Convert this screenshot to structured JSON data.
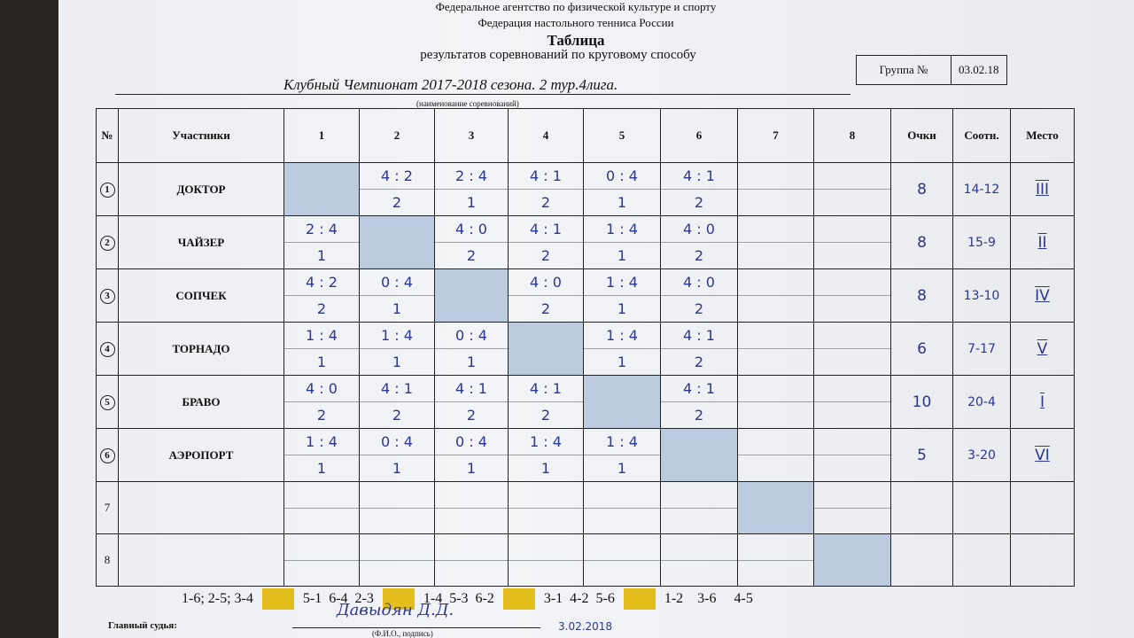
{
  "header": {
    "agency": "Федеральное агентство по физической культуре и спорту",
    "federation": "Федерация настольного тенниса России",
    "title": "Таблица",
    "subtitle": "результатов соревнований по круговому способу",
    "competition": "Клубный Чемпионат 2017-2018 сезона. 2 тур.4лига.",
    "competition_note": "(наименование соревнований)",
    "group_label": "Группа №",
    "group_value": "03.02.18"
  },
  "table": {
    "columns": [
      "№",
      "Участники",
      "1",
      "2",
      "3",
      "4",
      "5",
      "6",
      "7",
      "8",
      "Очки",
      "Соотн.",
      "Место"
    ],
    "rows": [
      {
        "num": "1",
        "name": "ДОКТОР",
        "results": [
          null,
          {
            "s": "4 : 2",
            "p": "2"
          },
          {
            "s": "2 : 4",
            "p": "1"
          },
          {
            "s": "4 : 1",
            "p": "2"
          },
          {
            "s": "0 : 4",
            "p": "1"
          },
          {
            "s": "4 : 1",
            "p": "2"
          },
          null,
          null
        ],
        "points": "8",
        "ratio": "14-12",
        "place": "III"
      },
      {
        "num": "2",
        "name": "ЧАЙЗЕР",
        "results": [
          {
            "s": "2 : 4",
            "p": "1"
          },
          null,
          {
            "s": "4 : 0",
            "p": "2"
          },
          {
            "s": "4 : 1",
            "p": "2"
          },
          {
            "s": "1 : 4",
            "p": "1"
          },
          {
            "s": "4 : 0",
            "p": "2"
          },
          null,
          null
        ],
        "points": "8",
        "ratio": "15-9",
        "place": "II"
      },
      {
        "num": "3",
        "name": "СОПЧЕК",
        "results": [
          {
            "s": "4 : 2",
            "p": "2"
          },
          {
            "s": "0 : 4",
            "p": "1"
          },
          null,
          {
            "s": "4 : 0",
            "p": "2"
          },
          {
            "s": "1 : 4",
            "p": "1"
          },
          {
            "s": "4 : 0",
            "p": "2"
          },
          null,
          null
        ],
        "points": "8",
        "ratio": "13-10",
        "place": "IV"
      },
      {
        "num": "4",
        "name": "ТОРНАДО",
        "results": [
          {
            "s": "1 : 4",
            "p": "1"
          },
          {
            "s": "1 : 4",
            "p": "1"
          },
          {
            "s": "0 : 4",
            "p": "1"
          },
          null,
          {
            "s": "1 : 4",
            "p": "1"
          },
          {
            "s": "4 : 1",
            "p": "2"
          },
          null,
          null
        ],
        "points": "6",
        "ratio": "7-17",
        "place": "V"
      },
      {
        "num": "5",
        "name": "БРАВО",
        "results": [
          {
            "s": "4 : 0",
            "p": "2"
          },
          {
            "s": "4 : 1",
            "p": "2"
          },
          {
            "s": "4 : 1",
            "p": "2"
          },
          {
            "s": "4 : 1",
            "p": "2"
          },
          null,
          {
            "s": "4 : 1",
            "p": "2"
          },
          null,
          null
        ],
        "points": "10",
        "ratio": "20-4",
        "place": "I"
      },
      {
        "num": "6",
        "name": "АЭРОПОРТ",
        "results": [
          {
            "s": "1 : 4",
            "p": "1"
          },
          {
            "s": "0 : 4",
            "p": "1"
          },
          {
            "s": "0 : 4",
            "p": "1"
          },
          {
            "s": "1 : 4",
            "p": "1"
          },
          {
            "s": "1 : 4",
            "p": "1"
          },
          null,
          null,
          null
        ],
        "points": "5",
        "ratio": "3-20",
        "place": "VI"
      },
      {
        "num": "7",
        "name": "",
        "results": [
          null,
          null,
          null,
          null,
          null,
          null,
          null,
          null
        ],
        "points": "",
        "ratio": "",
        "place": ""
      },
      {
        "num": "8",
        "name": "",
        "results": [
          null,
          null,
          null,
          null,
          null,
          null,
          null,
          null
        ],
        "points": "",
        "ratio": "",
        "place": ""
      }
    ]
  },
  "schedule": [
    "1-6; 2-5; 3-4",
    "5-1  6-4  2-3",
    "1-4  5-3  6-2",
    "3-1  4-2  5-6",
    "1-2    3-6     4-5"
  ],
  "colors": {
    "diagonal": "#bccbe0",
    "round_marker": "#e2bd1c",
    "ink": "#2b3592"
  },
  "footer": {
    "judge_label": "Главный судья:",
    "judge_note": "(Ф.И.О., подпись)",
    "signature": "Давыдян Д.Д.",
    "sign_date": "3.02.2018"
  }
}
